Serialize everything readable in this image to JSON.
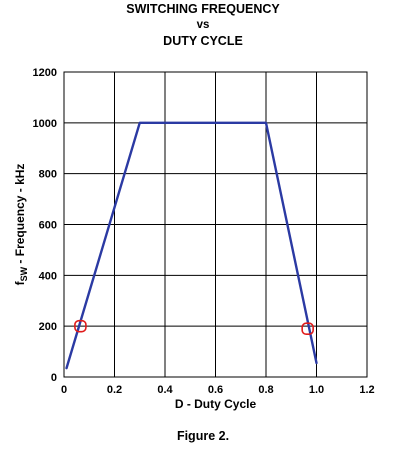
{
  "chart_data": {
    "type": "line",
    "title": [
      "SWITCHING FREQUENCY",
      "vs",
      "DUTY CYCLE"
    ],
    "xlabel": "D - Duty Cycle",
    "ylabel": {
      "base": "f",
      "sub": "SW",
      "rest": " - Frequency - kHz"
    },
    "xlim": [
      0,
      1.2
    ],
    "ylim": [
      0,
      1200
    ],
    "x_ticks": [
      0,
      0.2,
      0.4,
      0.6,
      0.8,
      1.0,
      1.2
    ],
    "x_tick_labels": [
      "0",
      "0.2",
      "0.4",
      "0.6",
      "0.8",
      "1.0",
      "1.2"
    ],
    "y_ticks": [
      0,
      200,
      400,
      600,
      800,
      1000,
      1200
    ],
    "y_tick_labels": [
      "0",
      "200",
      "400",
      "600",
      "800",
      "1000",
      "1200"
    ],
    "grid": true,
    "series": [
      {
        "x": [
          0.01,
          0.3,
          0.8,
          1.0
        ],
        "y": [
          35,
          1000,
          1000,
          55
        ],
        "color": "#2b3aa3"
      }
    ],
    "markers": [
      {
        "x": 0.065,
        "y": 200,
        "color": "#e01b1b"
      },
      {
        "x": 0.965,
        "y": 190,
        "color": "#e01b1b"
      }
    ]
  },
  "caption": "Figure 2."
}
